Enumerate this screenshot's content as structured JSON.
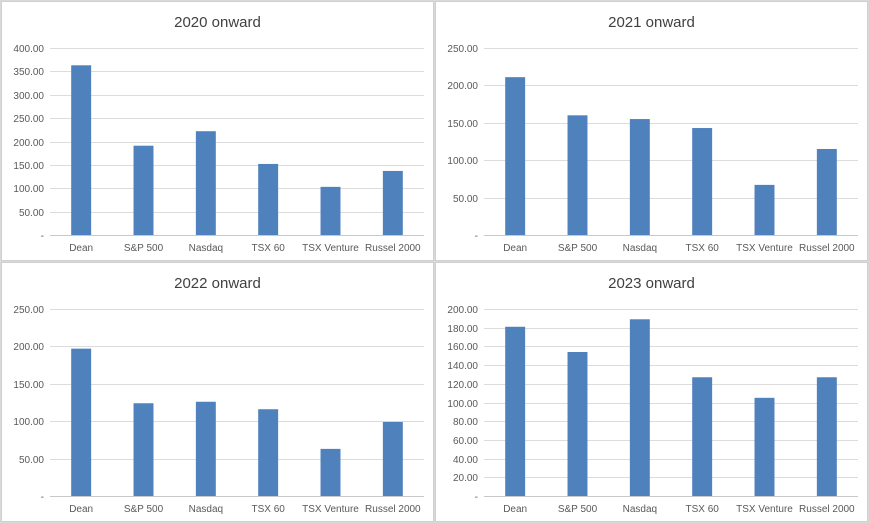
{
  "chart_data": [
    {
      "type": "bar",
      "title": "2020 onward",
      "categories": [
        "Dean",
        "S&P 500",
        "Nasdaq",
        "TSX 60",
        "TSX Venture",
        "Russel 2000"
      ],
      "values": [
        363,
        191,
        222,
        152,
        103,
        137
      ],
      "ylim": [
        0,
        400
      ],
      "yticks": [
        "-",
        "50.00",
        "100.00",
        "150.00",
        "200.00",
        "250.00",
        "300.00",
        "350.00",
        "400.00"
      ],
      "grid": true,
      "bar_color": "#4f81bd"
    },
    {
      "type": "bar",
      "title": "2021 onward",
      "categories": [
        "Dean",
        "S&P 500",
        "Nasdaq",
        "TSX 60",
        "TSX Venture",
        "Russel 2000"
      ],
      "values": [
        211,
        160,
        155,
        143,
        67,
        115
      ],
      "ylim": [
        0,
        250
      ],
      "yticks": [
        "-",
        "50.00",
        "100.00",
        "150.00",
        "200.00",
        "250.00"
      ],
      "grid": true,
      "bar_color": "#4f81bd"
    },
    {
      "type": "bar",
      "title": "2022 onward",
      "categories": [
        "Dean",
        "S&P 500",
        "Nasdaq",
        "TSX 60",
        "TSX Venture",
        "Russel 2000"
      ],
      "values": [
        197,
        124,
        126,
        116,
        63,
        99
      ],
      "ylim": [
        0,
        250
      ],
      "yticks": [
        "-",
        "50.00",
        "100.00",
        "150.00",
        "200.00",
        "250.00"
      ],
      "grid": true,
      "bar_color": "#4f81bd"
    },
    {
      "type": "bar",
      "title": "2023 onward",
      "categories": [
        "Dean",
        "S&P 500",
        "Nasdaq",
        "TSX 60",
        "TSX Venture",
        "Russel 2000"
      ],
      "values": [
        181,
        154,
        189,
        127,
        105,
        127
      ],
      "ylim": [
        0,
        200
      ],
      "yticks": [
        "-",
        "20.00",
        "40.00",
        "60.00",
        "80.00",
        "100.00",
        "120.00",
        "140.00",
        "160.00",
        "180.00",
        "200.00"
      ],
      "grid": true,
      "bar_color": "#4f81bd"
    }
  ]
}
